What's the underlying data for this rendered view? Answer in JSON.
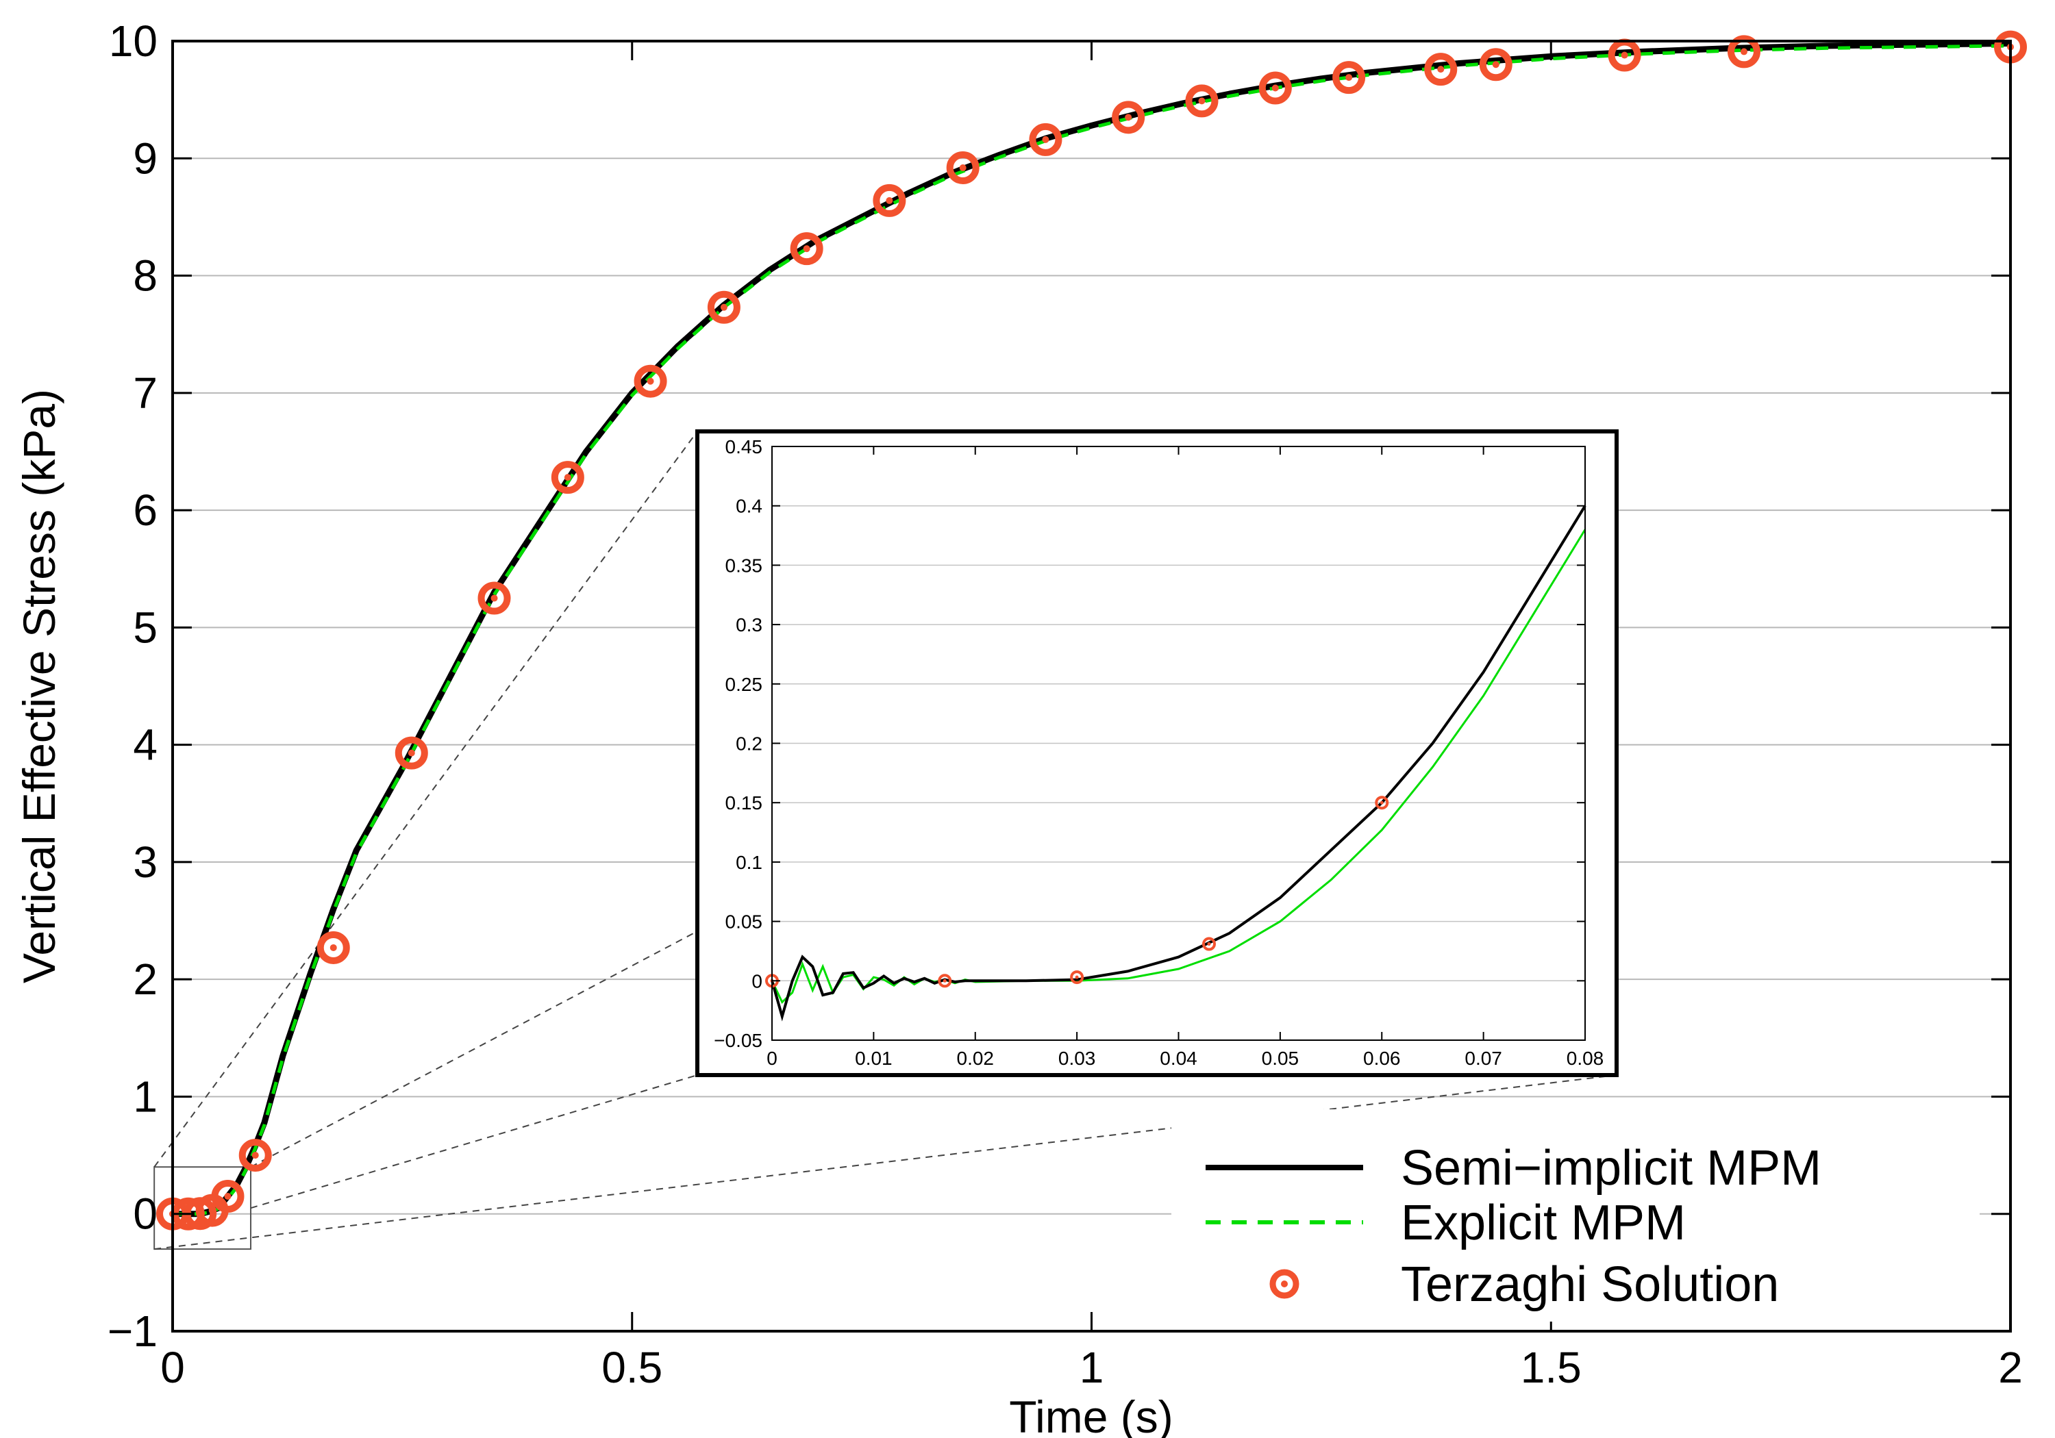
{
  "chart_data": {
    "type": "line",
    "xlabel": "Time (s)",
    "ylabel": "Vertical Effective Stress (kPa)",
    "xlim": [
      0,
      2
    ],
    "ylim": [
      -1,
      10
    ],
    "xticks": [
      "0",
      "0.5",
      "1",
      "1.5",
      "2"
    ],
    "yticks": [
      "−1",
      "0",
      "1",
      "2",
      "3",
      "4",
      "5",
      "6",
      "7",
      "8",
      "9",
      "10"
    ],
    "grid": "horizontal",
    "legend_position": "bottom-right",
    "colors": {
      "semi": "#000000",
      "explicit": "#00dd00",
      "terzaghi": "#f2522e"
    },
    "series": [
      {
        "name": "Semi−implicit MPM",
        "style": "solid",
        "x": [
          0,
          0.01,
          0.02,
          0.03,
          0.04,
          0.05,
          0.06,
          0.07,
          0.08,
          0.09,
          0.1,
          0.12,
          0.15,
          0.175,
          0.2,
          0.25,
          0.3,
          0.35,
          0.4,
          0.45,
          0.5,
          0.55,
          0.6,
          0.65,
          0.7,
          0.75,
          0.8,
          0.85,
          0.9,
          0.95,
          1.0,
          1.05,
          1.1,
          1.15,
          1.2,
          1.25,
          1.3,
          1.35,
          1.4,
          1.45,
          1.5,
          1.6,
          1.7,
          1.8,
          1.9,
          2.0
        ],
        "y": [
          0,
          0,
          0,
          0,
          0.02,
          0.05,
          0.15,
          0.25,
          0.4,
          0.58,
          0.78,
          1.35,
          2.05,
          2.6,
          3.1,
          3.8,
          4.55,
          5.3,
          5.9,
          6.5,
          7.0,
          7.4,
          7.75,
          8.05,
          8.3,
          8.5,
          8.7,
          8.88,
          9.03,
          9.17,
          9.28,
          9.38,
          9.47,
          9.55,
          9.62,
          9.68,
          9.73,
          9.77,
          9.81,
          9.84,
          9.87,
          9.91,
          9.94,
          9.96,
          9.97,
          9.98
        ]
      },
      {
        "name": "Explicit MPM",
        "style": "dashed",
        "x": [
          0,
          0.01,
          0.02,
          0.03,
          0.04,
          0.05,
          0.06,
          0.07,
          0.08,
          0.09,
          0.1,
          0.12,
          0.15,
          0.175,
          0.2,
          0.25,
          0.3,
          0.35,
          0.4,
          0.45,
          0.5,
          0.55,
          0.6,
          0.65,
          0.7,
          0.75,
          0.8,
          0.85,
          0.9,
          0.95,
          1.0,
          1.05,
          1.1,
          1.15,
          1.2,
          1.25,
          1.3,
          1.35,
          1.4,
          1.45,
          1.5,
          1.6,
          1.7,
          1.8,
          1.9,
          2.0
        ],
        "y": [
          0,
          0,
          0,
          0,
          0.015,
          0.045,
          0.13,
          0.23,
          0.38,
          0.56,
          0.76,
          1.33,
          2.03,
          2.58,
          3.08,
          3.78,
          4.53,
          5.28,
          5.88,
          6.48,
          6.98,
          7.38,
          7.73,
          8.03,
          8.28,
          8.48,
          8.68,
          8.86,
          9.01,
          9.15,
          9.26,
          9.36,
          9.45,
          9.53,
          9.6,
          9.66,
          9.71,
          9.75,
          9.79,
          9.82,
          9.85,
          9.89,
          9.92,
          9.94,
          9.95,
          9.96
        ]
      },
      {
        "name": "Terzaghi Solution",
        "style": "markers",
        "x": [
          0,
          0.017,
          0.03,
          0.043,
          0.06,
          0.09,
          0.175,
          0.26,
          0.35,
          0.43,
          0.52,
          0.6,
          0.69,
          0.78,
          0.86,
          0.95,
          1.04,
          1.12,
          1.2,
          1.28,
          1.38,
          1.44,
          1.58,
          1.71,
          2.0
        ],
        "y": [
          0,
          0,
          0.003,
          0.03,
          0.15,
          0.5,
          2.27,
          3.93,
          5.25,
          6.28,
          7.1,
          7.73,
          8.23,
          8.64,
          8.92,
          9.16,
          9.35,
          9.49,
          9.6,
          9.69,
          9.76,
          9.8,
          9.88,
          9.91,
          9.95
        ]
      }
    ],
    "inset": {
      "xlim": [
        0,
        0.08
      ],
      "ylim": [
        -0.05,
        0.45
      ],
      "xticks": [
        "0",
        "0.01",
        "0.02",
        "0.03",
        "0.04",
        "0.05",
        "0.06",
        "0.07",
        "0.08"
      ],
      "yticks": [
        "−0.05",
        "0",
        "0.05",
        "0.1",
        "0.15",
        "0.2",
        "0.25",
        "0.3",
        "0.35",
        "0.4",
        "0.45"
      ],
      "series": [
        {
          "name": "Semi−implicit MPM",
          "x": [
            0,
            0.001,
            0.002,
            0.003,
            0.004,
            0.005,
            0.006,
            0.007,
            0.008,
            0.009,
            0.01,
            0.011,
            0.012,
            0.013,
            0.014,
            0.015,
            0.016,
            0.017,
            0.018,
            0.019,
            0.02,
            0.025,
            0.03,
            0.035,
            0.04,
            0.045,
            0.05,
            0.055,
            0.06,
            0.065,
            0.07,
            0.075,
            0.08
          ],
          "y": [
            0,
            -0.03,
            0,
            0.02,
            0.012,
            -0.012,
            -0.01,
            0.006,
            0.007,
            -0.006,
            -0.002,
            0.004,
            -0.002,
            0.002,
            -0.001,
            0.002,
            -0.002,
            0.001,
            -0.001,
            0,
            0,
            0,
            0.001,
            0.008,
            0.02,
            0.04,
            0.07,
            0.11,
            0.15,
            0.2,
            0.26,
            0.33,
            0.4
          ]
        },
        {
          "name": "Explicit MPM",
          "x": [
            0,
            0.001,
            0.002,
            0.003,
            0.004,
            0.005,
            0.006,
            0.007,
            0.008,
            0.009,
            0.01,
            0.011,
            0.012,
            0.013,
            0.014,
            0.015,
            0.016,
            0.017,
            0.018,
            0.019,
            0.02,
            0.025,
            0.03,
            0.035,
            0.04,
            0.045,
            0.05,
            0.055,
            0.06,
            0.065,
            0.07,
            0.075,
            0.08
          ],
          "y": [
            0,
            -0.018,
            -0.01,
            0.014,
            -0.008,
            0.012,
            -0.01,
            0.003,
            0.005,
            -0.007,
            0.003,
            0.001,
            -0.004,
            0.003,
            -0.003,
            0.002,
            -0.001,
            0.001,
            -0.002,
            0.001,
            -0.001,
            0,
            0,
            0.002,
            0.01,
            0.025,
            0.05,
            0.085,
            0.127,
            0.18,
            0.24,
            0.31,
            0.38
          ]
        },
        {
          "name": "Terzaghi Solution",
          "x": [
            0,
            0.017,
            0.03,
            0.043,
            0.06
          ],
          "y": [
            0,
            0,
            0.003,
            0.031,
            0.15
          ]
        }
      ]
    }
  }
}
